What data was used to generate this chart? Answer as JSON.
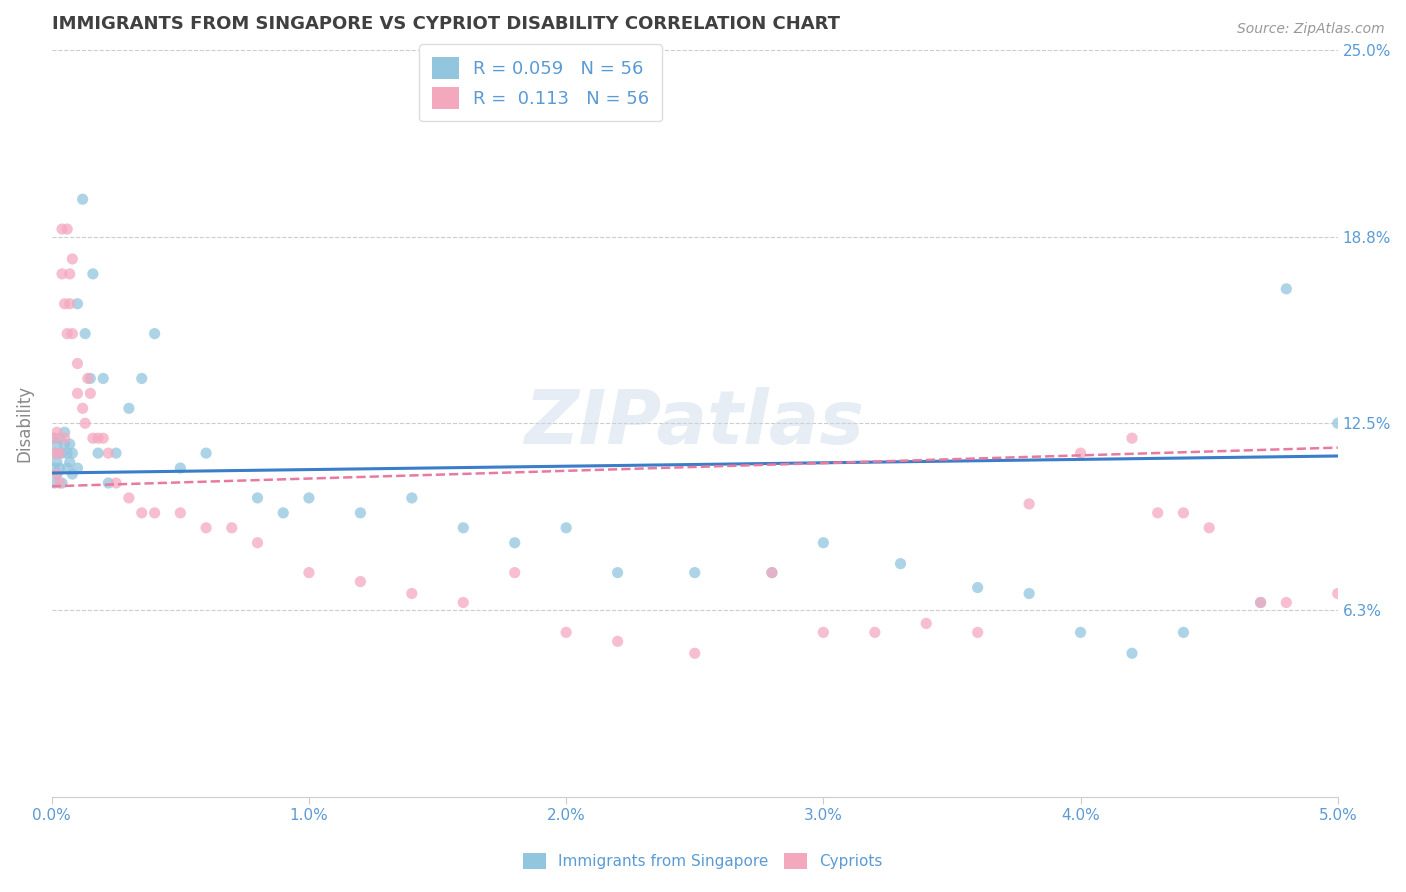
{
  "title": "IMMIGRANTS FROM SINGAPORE VS CYPRIOT DISABILITY CORRELATION CHART",
  "source_text": "Source: ZipAtlas.com",
  "ylabel": "Disability",
  "xlim": [
    0.0,
    0.05
  ],
  "ylim": [
    0.0,
    0.25
  ],
  "xtick_labels": [
    "0.0%",
    "1.0%",
    "2.0%",
    "3.0%",
    "4.0%",
    "5.0%"
  ],
  "xtick_vals": [
    0.0,
    0.01,
    0.02,
    0.03,
    0.04,
    0.05
  ],
  "ytick_vals": [
    0.0625,
    0.125,
    0.1875,
    0.25
  ],
  "ytick_labels": [
    "6.3%",
    "12.5%",
    "18.8%",
    "25.0%"
  ],
  "blue_R": 0.059,
  "blue_N": 56,
  "pink_R": 0.113,
  "pink_N": 56,
  "blue_color": "#92c5de",
  "pink_color": "#f4a8be",
  "blue_line_color": "#3a7dc9",
  "pink_line_color": "#e87aa0",
  "background_color": "#ffffff",
  "grid_color": "#cccccc",
  "title_color": "#404040",
  "axis_label_color": "#5b9bd5",
  "legend_label1": "Immigrants from Singapore",
  "legend_label2": "Cypriots",
  "blue_x": [
    0.0001,
    0.0001,
    0.0001,
    0.0001,
    0.0002,
    0.0002,
    0.0002,
    0.0003,
    0.0003,
    0.0003,
    0.0004,
    0.0004,
    0.0005,
    0.0005,
    0.0006,
    0.0006,
    0.0007,
    0.0007,
    0.0008,
    0.0008,
    0.001,
    0.001,
    0.0012,
    0.0013,
    0.0015,
    0.0016,
    0.0018,
    0.002,
    0.0022,
    0.0025,
    0.003,
    0.0035,
    0.004,
    0.005,
    0.006,
    0.008,
    0.009,
    0.01,
    0.012,
    0.014,
    0.016,
    0.018,
    0.02,
    0.022,
    0.025,
    0.028,
    0.03,
    0.033,
    0.036,
    0.038,
    0.04,
    0.042,
    0.044,
    0.047,
    0.048,
    0.05
  ],
  "blue_y": [
    0.105,
    0.11,
    0.115,
    0.12,
    0.108,
    0.112,
    0.118,
    0.11,
    0.115,
    0.12,
    0.105,
    0.115,
    0.118,
    0.122,
    0.11,
    0.115,
    0.112,
    0.118,
    0.108,
    0.115,
    0.11,
    0.165,
    0.2,
    0.155,
    0.14,
    0.175,
    0.115,
    0.14,
    0.105,
    0.115,
    0.13,
    0.14,
    0.155,
    0.11,
    0.115,
    0.1,
    0.095,
    0.1,
    0.095,
    0.1,
    0.09,
    0.085,
    0.09,
    0.075,
    0.075,
    0.075,
    0.085,
    0.078,
    0.07,
    0.068,
    0.055,
    0.048,
    0.055,
    0.065,
    0.17,
    0.125
  ],
  "pink_x": [
    0.0001,
    0.0001,
    0.0002,
    0.0002,
    0.0003,
    0.0003,
    0.0004,
    0.0004,
    0.0005,
    0.0005,
    0.0006,
    0.0006,
    0.0007,
    0.0007,
    0.0008,
    0.0008,
    0.001,
    0.001,
    0.0012,
    0.0013,
    0.0014,
    0.0015,
    0.0016,
    0.0018,
    0.002,
    0.0022,
    0.0025,
    0.003,
    0.0035,
    0.004,
    0.005,
    0.006,
    0.007,
    0.008,
    0.01,
    0.012,
    0.014,
    0.016,
    0.018,
    0.02,
    0.022,
    0.025,
    0.028,
    0.03,
    0.032,
    0.034,
    0.036,
    0.038,
    0.04,
    0.042,
    0.043,
    0.044,
    0.045,
    0.047,
    0.048,
    0.05
  ],
  "pink_y": [
    0.115,
    0.12,
    0.108,
    0.122,
    0.105,
    0.115,
    0.19,
    0.175,
    0.165,
    0.12,
    0.155,
    0.19,
    0.165,
    0.175,
    0.18,
    0.155,
    0.145,
    0.135,
    0.13,
    0.125,
    0.14,
    0.135,
    0.12,
    0.12,
    0.12,
    0.115,
    0.105,
    0.1,
    0.095,
    0.095,
    0.095,
    0.09,
    0.09,
    0.085,
    0.075,
    0.072,
    0.068,
    0.065,
    0.075,
    0.055,
    0.052,
    0.048,
    0.075,
    0.055,
    0.055,
    0.058,
    0.055,
    0.098,
    0.115,
    0.12,
    0.095,
    0.095,
    0.09,
    0.065,
    0.065,
    0.068
  ]
}
